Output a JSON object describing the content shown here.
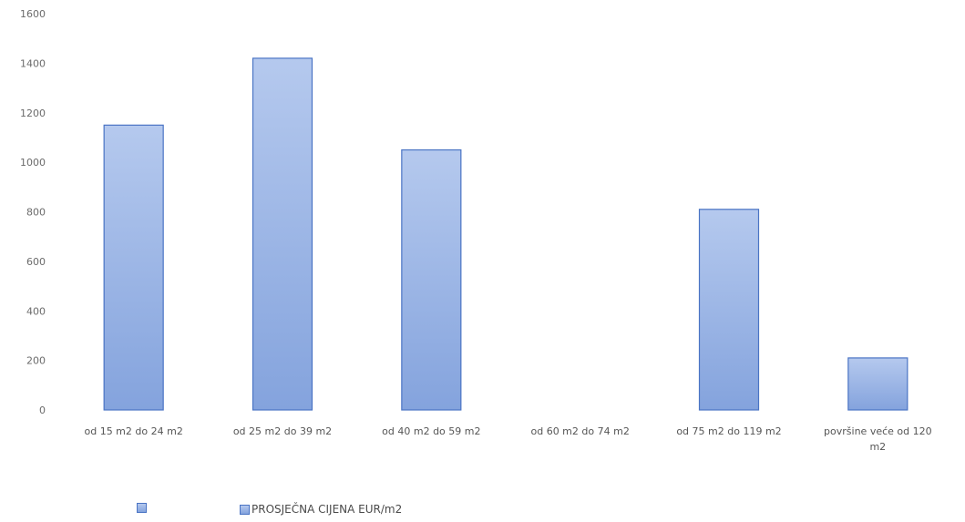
{
  "chart_data": {
    "type": "bar",
    "categories": [
      [
        "od 15 m2 do 24 m2"
      ],
      [
        "od 25 m2 do 39 m2"
      ],
      [
        "od 40 m2 do 59 m2"
      ],
      [
        "od 60 m2 do 74 m2"
      ],
      [
        "od 75 m2 do 119 m2"
      ],
      [
        "površine veće od 120",
        "m2"
      ]
    ],
    "series": [
      {
        "name": "PROSJEČNA CIJENA EUR/m2",
        "values": [
          1150,
          1420,
          1050,
          0,
          810,
          210
        ]
      }
    ],
    "ylim": [
      0,
      1600
    ],
    "yticks": [
      "0",
      "200",
      "400",
      "600",
      "800",
      "1000",
      "1200",
      "1400",
      "1600"
    ],
    "grid": false,
    "legend_position": "bottom",
    "colors": {
      "bar_fill_top": "#b5c9ee",
      "bar_fill_bottom": "#84a3dd",
      "bar_stroke": "#4a74c4"
    }
  },
  "legend": {
    "items": [
      {
        "label": ""
      },
      {
        "label": "PROSJEČNA CIJENA EUR/m2"
      }
    ]
  }
}
